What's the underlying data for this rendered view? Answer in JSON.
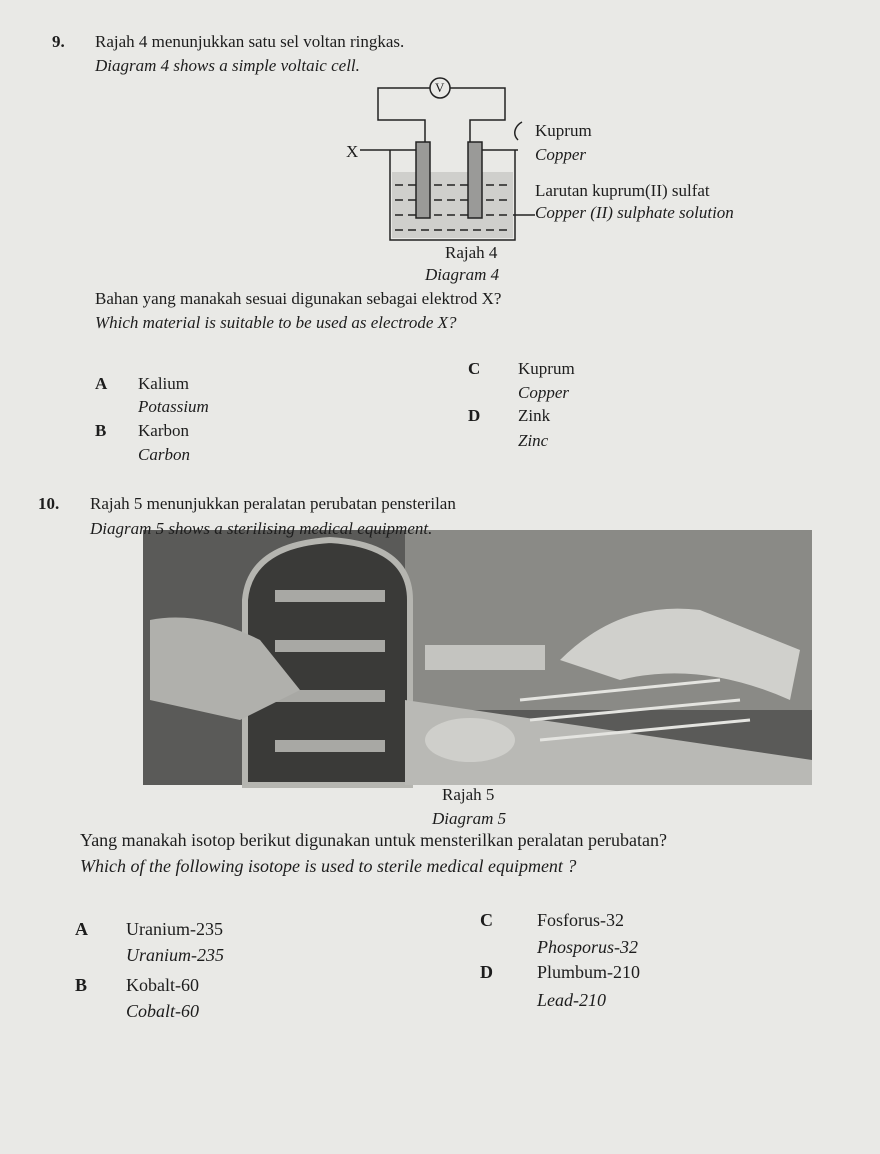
{
  "question_9": {
    "number": "9.",
    "stem_ms": "Rajah 4 menunjukkan satu sel voltan ringkas.",
    "stem_en": "Diagram 4 shows a simple voltaic cell.",
    "diagram": {
      "voltmeter": "V",
      "electrode_x": "X",
      "label_ms_1": "Kuprum",
      "label_en_1": "Copper",
      "label_ms_2": "Larutan kuprum(II) sulfat",
      "label_en_2": "Copper (II) sulphate solution",
      "caption_ms": "Rajah 4",
      "caption_en": "Diagram 4"
    },
    "question_ms": "Bahan yang manakah sesuai digunakan sebagai elektrod X?",
    "question_en": "Which material is suitable to be used as electrode X?",
    "options": [
      {
        "letter": "A",
        "ms": "Kalium",
        "en": "Potassium"
      },
      {
        "letter": "B",
        "ms": "Karbon",
        "en": "Carbon"
      },
      {
        "letter": "C",
        "ms": "Kuprum",
        "en": "Copper"
      },
      {
        "letter": "D",
        "ms": "Zink",
        "en": "Zinc"
      }
    ]
  },
  "question_10": {
    "number": "10.",
    "stem_ms": "Rajah 5 menunjukkan peralatan perubatan pensterilan",
    "stem_en": "Diagram 5 shows a sterilising medical equipment.",
    "caption_ms": "Rajah 5",
    "caption_en": "Diagram 5",
    "question_ms": "Yang manakah isotop berikut digunakan untuk mensterilkan peralatan perubatan?",
    "question_en": "Which of the following isotope is used to sterile medical equipment ?",
    "options": [
      {
        "letter": "A",
        "ms": "Uranium-235",
        "en": "Uranium-235"
      },
      {
        "letter": "B",
        "ms": "Kobalt-60",
        "en": "Cobalt-60"
      },
      {
        "letter": "C",
        "ms": "Fosforus-32",
        "en": "Phosporus-32"
      },
      {
        "letter": "D",
        "ms": "Plumbum-210",
        "en": "Lead-210"
      }
    ]
  }
}
